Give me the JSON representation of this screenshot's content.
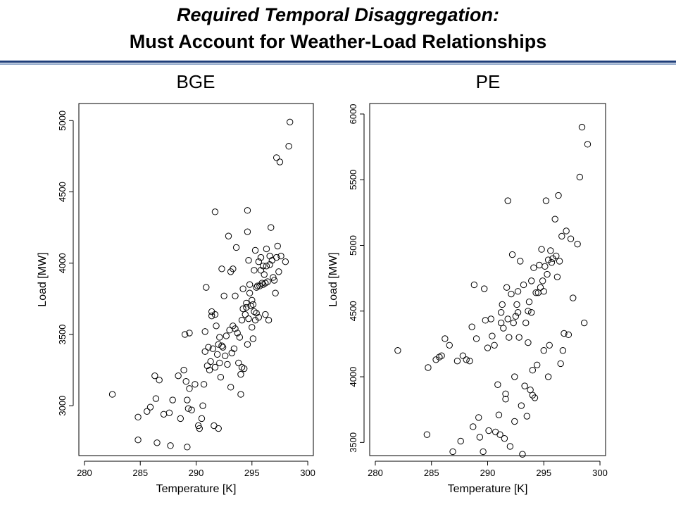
{
  "header": {
    "title_line1": "Required Temporal Disaggregation:",
    "title_line2": "Must Account for Weather-Load Relationships",
    "rule_color": "#1f3f7a"
  },
  "chart_data": [
    {
      "type": "scatter",
      "title": "BGE",
      "xlabel": "Temperature [K]",
      "ylabel": "Load [MW]",
      "xlim": [
        279.5,
        300.5
      ],
      "ylim": [
        2650,
        5120
      ],
      "xticks": [
        280,
        285,
        290,
        295,
        300
      ],
      "yticks": [
        3000,
        3500,
        4000,
        4500,
        5000
      ],
      "grid": false,
      "marker": "open-circle",
      "points": [
        [
          282.5,
          3080
        ],
        [
          284.8,
          2920
        ],
        [
          284.8,
          2760
        ],
        [
          285.6,
          2960
        ],
        [
          285.9,
          2990
        ],
        [
          286.3,
          3210
        ],
        [
          286.4,
          3050
        ],
        [
          286.5,
          2740
        ],
        [
          286.7,
          3180
        ],
        [
          287.1,
          2940
        ],
        [
          287.6,
          2950
        ],
        [
          287.7,
          2720
        ],
        [
          287.9,
          3040
        ],
        [
          288.4,
          3210
        ],
        [
          288.6,
          2910
        ],
        [
          288.9,
          3250
        ],
        [
          289.0,
          3500
        ],
        [
          289.1,
          3170
        ],
        [
          289.2,
          2710
        ],
        [
          289.2,
          3040
        ],
        [
          289.3,
          2980
        ],
        [
          289.4,
          3120
        ],
        [
          289.4,
          3510
        ],
        [
          289.6,
          2970
        ],
        [
          289.9,
          3150
        ],
        [
          290.2,
          2860
        ],
        [
          290.3,
          2840
        ],
        [
          290.5,
          2910
        ],
        [
          290.6,
          3000
        ],
        [
          290.7,
          3150
        ],
        [
          290.8,
          3380
        ],
        [
          290.8,
          3520
        ],
        [
          290.9,
          3830
        ],
        [
          291.0,
          3280
        ],
        [
          291.1,
          3410
        ],
        [
          291.2,
          3250
        ],
        [
          291.3,
          3310
        ],
        [
          291.4,
          3630
        ],
        [
          291.4,
          3660
        ],
        [
          291.5,
          3400
        ],
        [
          291.6,
          2860
        ],
        [
          291.7,
          3640
        ],
        [
          291.7,
          3270
        ],
        [
          291.8,
          3560
        ],
        [
          291.9,
          3360
        ],
        [
          292.0,
          2840
        ],
        [
          292.0,
          3430
        ],
        [
          292.1,
          3480
        ],
        [
          292.1,
          3300
        ],
        [
          292.2,
          3200
        ],
        [
          292.3,
          3420
        ],
        [
          292.3,
          3960
        ],
        [
          292.4,
          3410
        ],
        [
          292.5,
          3770
        ],
        [
          292.6,
          3350
        ],
        [
          292.7,
          3490
        ],
        [
          292.8,
          3290
        ],
        [
          292.9,
          4190
        ],
        [
          293.0,
          3530
        ],
        [
          293.1,
          3130
        ],
        [
          293.1,
          3940
        ],
        [
          293.2,
          3370
        ],
        [
          293.3,
          3560
        ],
        [
          293.4,
          3400
        ],
        [
          293.5,
          3770
        ],
        [
          293.5,
          3540
        ],
        [
          293.6,
          4110
        ],
        [
          293.7,
          3510
        ],
        [
          293.8,
          3300
        ],
        [
          293.9,
          3480
        ],
        [
          294.0,
          3220
        ],
        [
          294.0,
          3080
        ],
        [
          294.1,
          3270
        ],
        [
          294.1,
          3600
        ],
        [
          294.2,
          3820
        ],
        [
          294.2,
          3680
        ],
        [
          294.3,
          3260
        ],
        [
          294.4,
          3640
        ],
        [
          294.5,
          3720
        ],
        [
          294.5,
          3690
        ],
        [
          294.6,
          4220
        ],
        [
          294.6,
          3430
        ],
        [
          294.7,
          3610
        ],
        [
          294.7,
          4020
        ],
        [
          294.8,
          3850
        ],
        [
          294.8,
          3790
        ],
        [
          294.9,
          3700
        ],
        [
          295.0,
          3740
        ],
        [
          295.0,
          3550
        ],
        [
          295.1,
          3710
        ],
        [
          295.1,
          3470
        ],
        [
          295.2,
          3660
        ],
        [
          295.2,
          3950
        ],
        [
          295.3,
          3600
        ],
        [
          295.3,
          4090
        ],
        [
          295.4,
          3830
        ],
        [
          295.4,
          3650
        ],
        [
          295.5,
          3840
        ],
        [
          295.6,
          3620
        ],
        [
          295.6,
          4010
        ],
        [
          295.7,
          3840
        ],
        [
          295.8,
          3950
        ],
        [
          295.8,
          4040
        ],
        [
          295.9,
          3860
        ],
        [
          296.0,
          3980
        ],
        [
          296.0,
          3850
        ],
        [
          296.1,
          3920
        ],
        [
          296.2,
          3640
        ],
        [
          296.2,
          3860
        ],
        [
          296.3,
          4100
        ],
        [
          296.3,
          3980
        ],
        [
          296.4,
          3870
        ],
        [
          296.5,
          3600
        ],
        [
          296.6,
          4050
        ],
        [
          296.6,
          3990
        ],
        [
          296.7,
          4250
        ],
        [
          296.8,
          4020
        ],
        [
          296.9,
          3900
        ],
        [
          297.0,
          3880
        ],
        [
          297.1,
          3790
        ],
        [
          297.2,
          4040
        ],
        [
          297.2,
          4740
        ],
        [
          297.3,
          4120
        ],
        [
          297.4,
          3940
        ],
        [
          297.5,
          4710
        ],
        [
          297.6,
          4050
        ],
        [
          298.0,
          4010
        ],
        [
          298.3,
          4820
        ],
        [
          298.4,
          4990
        ],
        [
          291.7,
          4360
        ],
        [
          294.6,
          4370
        ],
        [
          293.3,
          3960
        ]
      ]
    },
    {
      "type": "scatter",
      "title": "PE",
      "xlabel": "Temperature [K]",
      "ylabel": "Load [MW]",
      "xlim": [
        279.5,
        300.5
      ],
      "ylim": [
        3400,
        6080
      ],
      "xticks": [
        280,
        285,
        290,
        295,
        300
      ],
      "yticks": [
        3500,
        4000,
        4500,
        5000,
        5500,
        6000
      ],
      "grid": false,
      "marker": "open-circle",
      "points": [
        [
          282.0,
          4200
        ],
        [
          284.6,
          3560
        ],
        [
          284.7,
          4070
        ],
        [
          285.4,
          4130
        ],
        [
          285.7,
          4150
        ],
        [
          285.9,
          4160
        ],
        [
          286.2,
          4290
        ],
        [
          286.6,
          4240
        ],
        [
          286.9,
          3430
        ],
        [
          287.3,
          4120
        ],
        [
          287.6,
          3510
        ],
        [
          287.8,
          4160
        ],
        [
          288.1,
          4130
        ],
        [
          288.4,
          4120
        ],
        [
          288.6,
          4380
        ],
        [
          288.7,
          3620
        ],
        [
          288.8,
          4700
        ],
        [
          289.0,
          4290
        ],
        [
          289.2,
          3690
        ],
        [
          289.3,
          3540
        ],
        [
          289.6,
          3430
        ],
        [
          289.7,
          4670
        ],
        [
          289.8,
          4430
        ],
        [
          290.0,
          4220
        ],
        [
          290.1,
          3590
        ],
        [
          290.3,
          4440
        ],
        [
          290.4,
          4310
        ],
        [
          290.6,
          4240
        ],
        [
          290.7,
          3580
        ],
        [
          290.9,
          3940
        ],
        [
          291.0,
          3710
        ],
        [
          291.1,
          3560
        ],
        [
          291.2,
          4490
        ],
        [
          291.2,
          4410
        ],
        [
          291.3,
          4550
        ],
        [
          291.4,
          4370
        ],
        [
          291.5,
          3530
        ],
        [
          291.6,
          3830
        ],
        [
          291.6,
          3870
        ],
        [
          291.7,
          4680
        ],
        [
          291.8,
          4440
        ],
        [
          291.9,
          4300
        ],
        [
          292.0,
          3470
        ],
        [
          292.1,
          4630
        ],
        [
          292.2,
          4930
        ],
        [
          292.3,
          4410
        ],
        [
          292.4,
          3660
        ],
        [
          292.4,
          4000
        ],
        [
          292.5,
          4460
        ],
        [
          292.6,
          4550
        ],
        [
          292.7,
          4650
        ],
        [
          292.8,
          4300
        ],
        [
          292.9,
          4880
        ],
        [
          293.0,
          3780
        ],
        [
          293.1,
          3410
        ],
        [
          293.2,
          4700
        ],
        [
          293.3,
          3930
        ],
        [
          293.4,
          4410
        ],
        [
          293.5,
          3700
        ],
        [
          293.6,
          4500
        ],
        [
          293.6,
          4260
        ],
        [
          293.7,
          4570
        ],
        [
          293.8,
          3900
        ],
        [
          293.9,
          4730
        ],
        [
          294.0,
          3860
        ],
        [
          294.0,
          4050
        ],
        [
          294.1,
          4830
        ],
        [
          294.2,
          3840
        ],
        [
          294.3,
          4640
        ],
        [
          294.4,
          4090
        ],
        [
          294.5,
          4640
        ],
        [
          294.6,
          4850
        ],
        [
          294.7,
          4680
        ],
        [
          294.8,
          4970
        ],
        [
          294.9,
          4730
        ],
        [
          295.0,
          4200
        ],
        [
          295.0,
          4650
        ],
        [
          295.1,
          4840
        ],
        [
          295.2,
          5340
        ],
        [
          295.3,
          4780
        ],
        [
          295.4,
          4890
        ],
        [
          295.5,
          4240
        ],
        [
          295.6,
          4960
        ],
        [
          295.7,
          4870
        ],
        [
          295.8,
          4900
        ],
        [
          296.0,
          5200
        ],
        [
          296.1,
          4920
        ],
        [
          296.2,
          4760
        ],
        [
          296.3,
          5380
        ],
        [
          296.4,
          4880
        ],
        [
          296.6,
          5070
        ],
        [
          296.7,
          4200
        ],
        [
          296.8,
          4330
        ],
        [
          297.0,
          5110
        ],
        [
          297.2,
          4320
        ],
        [
          297.4,
          5050
        ],
        [
          297.6,
          4600
        ],
        [
          298.0,
          5010
        ],
        [
          298.2,
          5520
        ],
        [
          298.4,
          5900
        ],
        [
          298.6,
          4410
        ],
        [
          298.9,
          5770
        ],
        [
          291.8,
          5340
        ],
        [
          296.5,
          4100
        ],
        [
          293.9,
          4490
        ],
        [
          295.4,
          4000
        ],
        [
          292.7,
          4490
        ]
      ]
    }
  ]
}
